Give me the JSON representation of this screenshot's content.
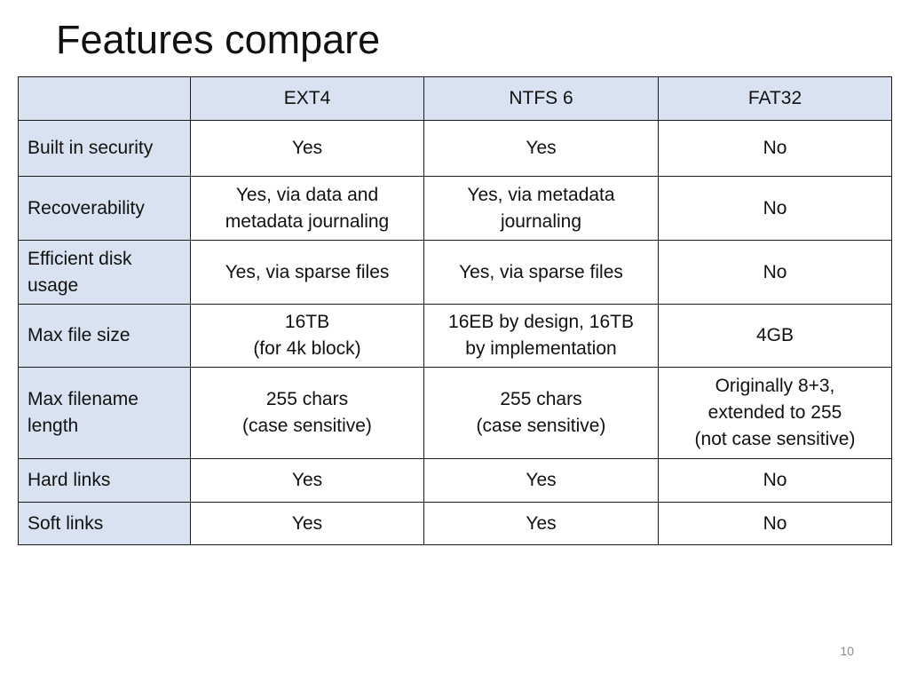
{
  "slide": {
    "title": "Features compare",
    "page_number": "10"
  },
  "table": {
    "columns": [
      "",
      "EXT4",
      "NTFS 6",
      "FAT32"
    ],
    "rows": [
      {
        "label": "Built in security",
        "values": [
          "Yes",
          "Yes",
          "No"
        ]
      },
      {
        "label": "Recoverability",
        "values": [
          "Yes, via data and\nmetadata journaling",
          "Yes, via metadata\njournaling",
          "No"
        ]
      },
      {
        "label": "Efficient disk\nusage",
        "values": [
          "Yes, via sparse files",
          "Yes, via sparse files",
          "No"
        ]
      },
      {
        "label": "Max file size",
        "values": [
          "16TB\n(for 4k block)",
          "16EB by design, 16TB\nby implementation",
          "4GB"
        ]
      },
      {
        "label": "Max filename\nlength",
        "values": [
          "255 chars\n(case sensitive)",
          "255 chars\n(case sensitive)",
          "Originally 8+3,\nextended to 255\n(not case sensitive)"
        ]
      },
      {
        "label": "Hard links",
        "values": [
          "Yes",
          "Yes",
          "No"
        ]
      },
      {
        "label": "Soft links",
        "values": [
          "Yes",
          "Yes",
          "No"
        ]
      }
    ]
  },
  "colors": {
    "header_fill": "#d9e2f1",
    "border": "#1a1a1a",
    "page_number": "#8a8a8a"
  }
}
